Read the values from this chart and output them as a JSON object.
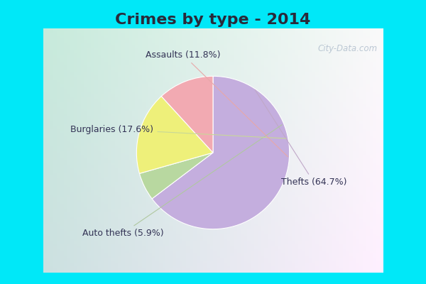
{
  "title": "Crimes by type - 2014",
  "slices": [
    {
      "label": "Thefts (64.7%)",
      "value": 64.7,
      "color": "#c4aede"
    },
    {
      "label": "Assaults (11.8%)",
      "value": 11.8,
      "color": "#f2aab2"
    },
    {
      "label": "Burglaries (17.6%)",
      "value": 17.6,
      "color": "#eef07a"
    },
    {
      "label": "Auto thefts (5.9%)",
      "value": 5.9,
      "color": "#b8d8a0"
    }
  ],
  "cyan_color": "#00e8f8",
  "title_fontsize": 16,
  "title_color": "#2a2a3a",
  "label_fontsize": 9,
  "label_color": "#333355",
  "watermark": "City-Data.com",
  "watermark_color": "#a8b8c8",
  "line_color": "#c0a0a8",
  "line_color2": "#b8c8a0"
}
